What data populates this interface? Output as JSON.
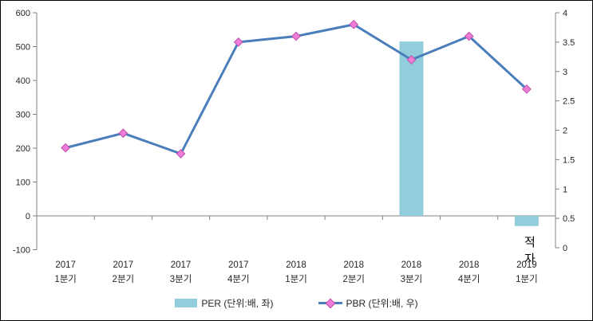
{
  "chart_data": {
    "type": "combo",
    "categories": [
      "2017 1분기",
      "2017 2분기",
      "2017 3분기",
      "2017 4분기",
      "2018 1분기",
      "2018 2분기",
      "2018 3분기",
      "2018 4분기",
      "2019 1분기"
    ],
    "series": [
      {
        "name": "PER (단위:배, 좌)",
        "chart_type": "bar",
        "axis": "left",
        "values": [
          null,
          null,
          null,
          null,
          null,
          null,
          515,
          null,
          -30
        ],
        "point_labels": [
          null,
          null,
          null,
          null,
          null,
          null,
          null,
          null,
          "적자"
        ]
      },
      {
        "name": "PBR (단위:배, 우)",
        "chart_type": "line",
        "axis": "right",
        "values": [
          1.7,
          1.95,
          1.6,
          3.5,
          3.6,
          3.8,
          3.2,
          3.6,
          2.7
        ]
      }
    ],
    "left_axis": {
      "min": -100,
      "max": 600,
      "step": 100,
      "tick_labels": [
        "600",
        "500",
        "400",
        "300",
        "200",
        "100",
        "0",
        "-100"
      ]
    },
    "right_axis": {
      "min": 0,
      "max": 4,
      "step": 0.5,
      "tick_labels": [
        "4",
        "3.5",
        "3",
        "2.5",
        "2",
        "1.5",
        "1",
        "0.5",
        "0"
      ]
    },
    "legend": {
      "position": "bottom",
      "entries": [
        "PER (단위:배, 좌)",
        "PBR (단위:배, 우)"
      ]
    },
    "grid": false,
    "title": "",
    "xlabel": "",
    "ylabel_left": "",
    "ylabel_right": ""
  },
  "colors": {
    "bar": "#92CDDC",
    "line": "#4A7EBB",
    "marker_fill": "#EE7DD7",
    "marker_stroke": "#BE4FAD",
    "axis": "#808080",
    "text": "#262626",
    "bar_label": "#000000"
  }
}
